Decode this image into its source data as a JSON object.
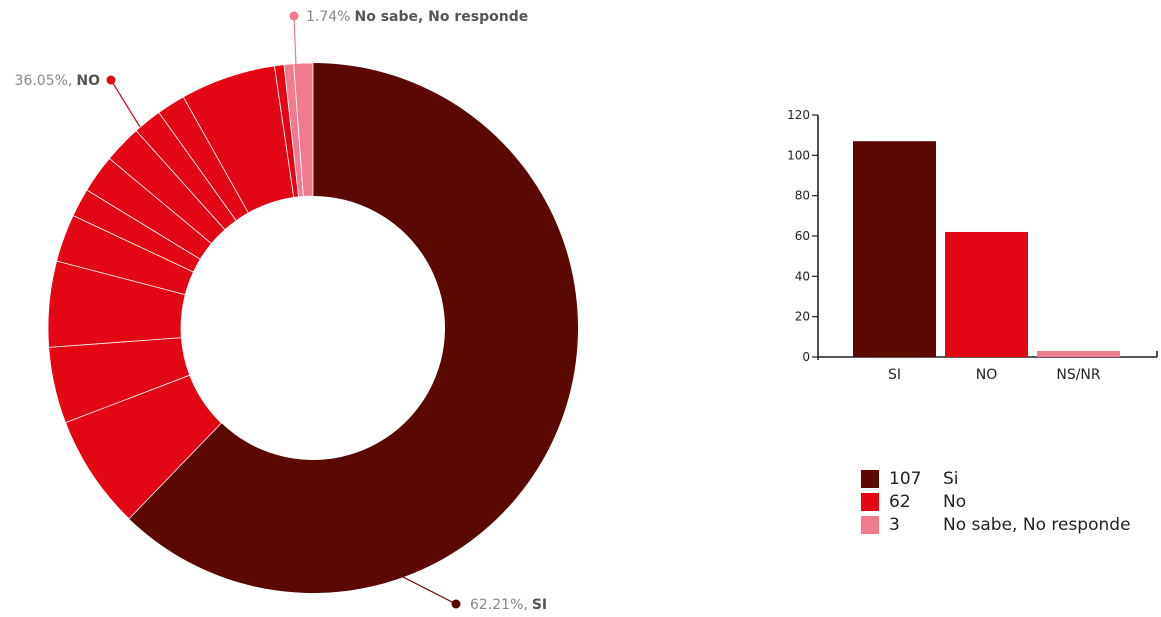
{
  "colors": {
    "si": "#5a0800",
    "no": "#e30613",
    "nsnr": "#f07a8e",
    "axis": "#222222",
    "label_text": "#888888",
    "label_bold": "#555555"
  },
  "chart_data": [
    {
      "type": "pie",
      "variant": "donut",
      "slices": [
        {
          "name": "SI",
          "value": 107,
          "percent": 62.21,
          "color": "#5a0800"
        },
        {
          "name": "NO",
          "value": 62,
          "percent": 36.05,
          "color": "#e30613",
          "sub_values": [
            12,
            8,
            9,
            5,
            3,
            4,
            4,
            3,
            3,
            10,
            1
          ]
        },
        {
          "name": "No sabe, No responde",
          "value": 3,
          "percent": 1.74,
          "color": "#f07a8e",
          "sub_values": [
            1,
            2
          ]
        }
      ],
      "labels": {
        "si": {
          "pct": "62.21%,",
          "name": "SI"
        },
        "no": {
          "pct": "36.05%,",
          "name": "NO"
        },
        "nsnr": {
          "pct": "1.74%",
          "name": "No sabe, No responde"
        }
      }
    },
    {
      "type": "bar",
      "categories": [
        "SI",
        "NO",
        "NS/NR"
      ],
      "values": [
        107,
        62,
        3
      ],
      "colors": [
        "#5a0800",
        "#e30613",
        "#f07a8e"
      ],
      "ylim": [
        0,
        120
      ],
      "yticks": [
        0,
        20,
        40,
        60,
        80,
        100,
        120
      ],
      "ytick_labels": [
        "0",
        "20",
        "40",
        "60",
        "80",
        "100",
        "120"
      ]
    }
  ],
  "legend": [
    {
      "value": "107",
      "label": "Si",
      "color": "#5a0800"
    },
    {
      "value": "62",
      "label": "No",
      "color": "#e30613"
    },
    {
      "value": "3",
      "label": "No sabe, No responde",
      "color": "#f07a8e"
    }
  ]
}
